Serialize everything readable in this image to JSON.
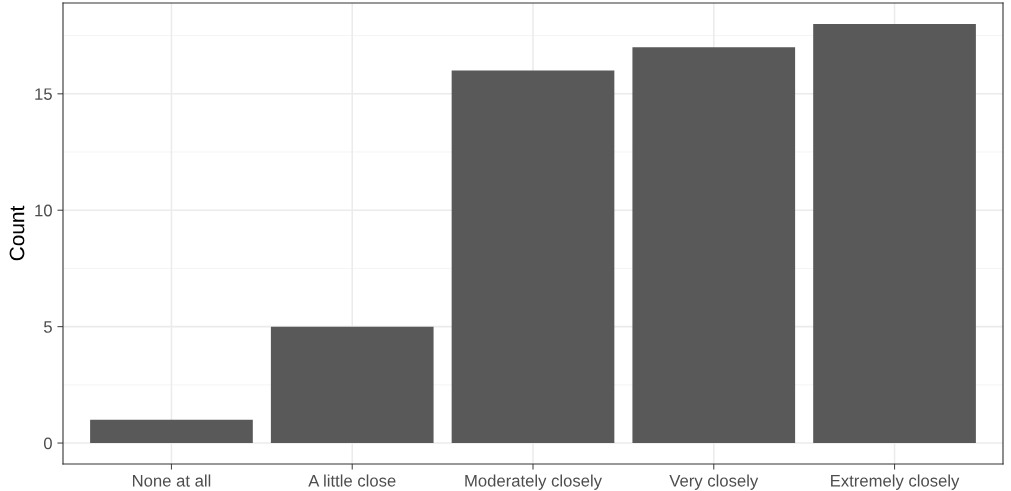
{
  "chart_data": {
    "type": "bar",
    "ylabel": "Count",
    "categories": [
      "None at all",
      "A little close",
      "Moderately closely",
      "Very closely",
      "Extremely closely"
    ],
    "values": [
      1,
      5,
      16,
      17,
      18
    ],
    "color": "#595959",
    "ylim": [
      -0.9,
      18.9
    ],
    "yticks": [
      0,
      5,
      10,
      15
    ],
    "grid": true
  }
}
